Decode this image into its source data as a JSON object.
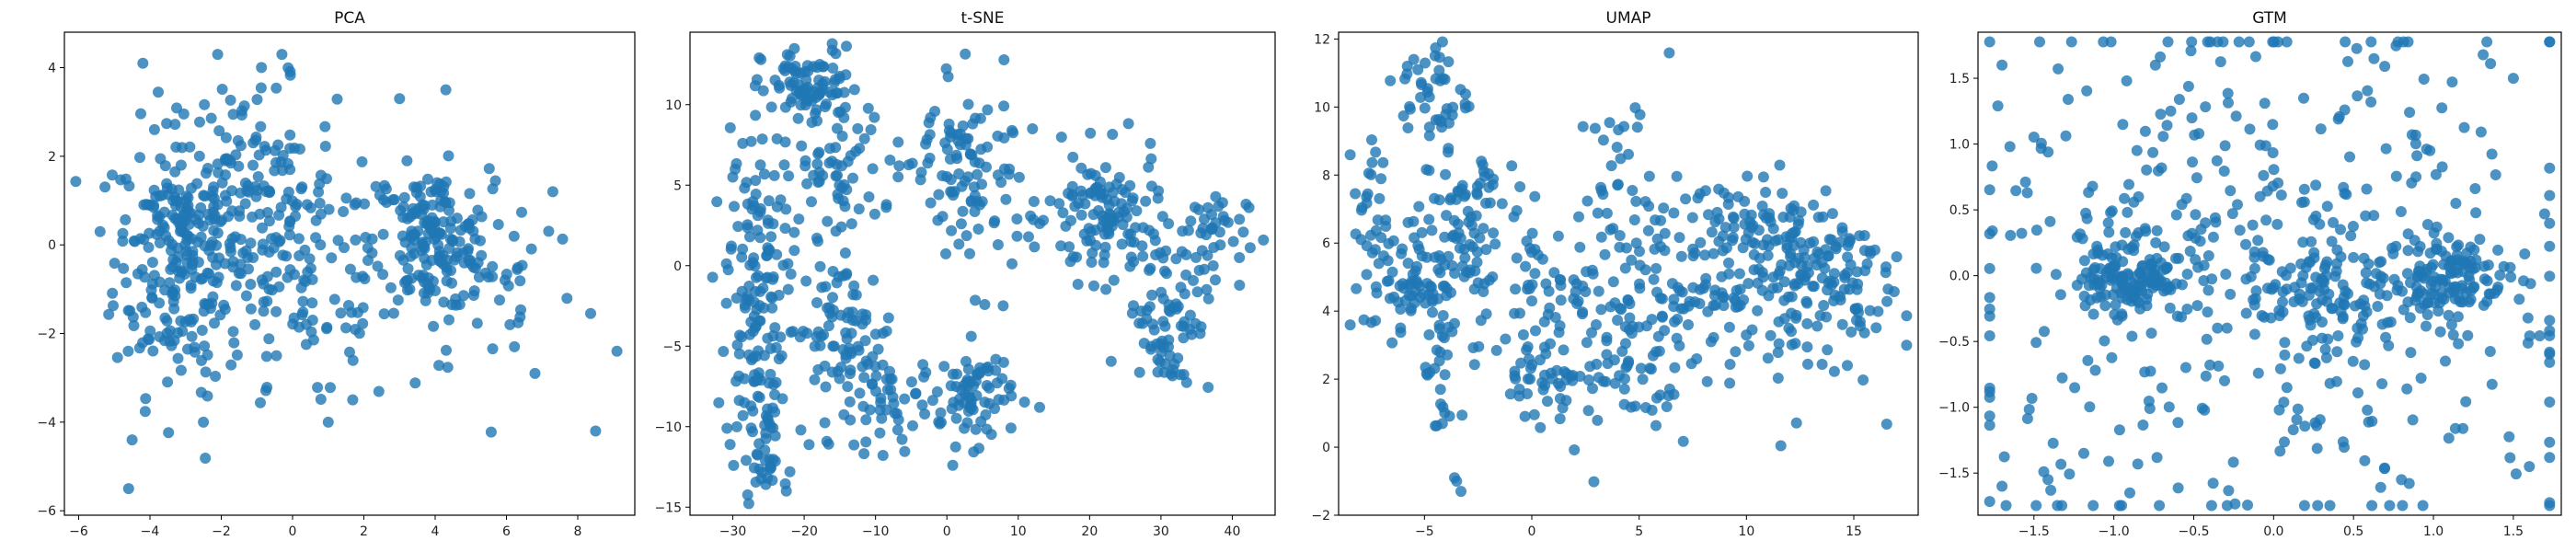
{
  "chart_data": [
    {
      "type": "scatter",
      "title": "PCA",
      "xlim": [
        -6.4,
        9.6
      ],
      "ylim": [
        -6.1,
        4.8
      ],
      "xticks": [
        -6,
        -4,
        -2,
        0,
        2,
        4,
        6,
        8
      ],
      "yticks": [
        -6,
        -4,
        -2,
        0,
        2,
        4
      ],
      "xtick_labels": [
        "−6",
        "−4",
        "−2",
        "0",
        "2",
        "4",
        "6",
        "8"
      ],
      "ytick_labels": [
        "−6",
        "−4",
        "−2",
        "0",
        "2",
        "4"
      ],
      "color": "#1f77b4",
      "clusters": [
        {
          "cx": -3.2,
          "cy": -0.3,
          "sx": 0.9,
          "sy": 1.5,
          "n": 230
        },
        {
          "cx": -1.2,
          "cy": 1.2,
          "sx": 1.2,
          "sy": 1.2,
          "n": 130
        },
        {
          "cx": 0.5,
          "cy": -1.0,
          "sx": 1.3,
          "sy": 1.5,
          "n": 110
        },
        {
          "cx": 3.9,
          "cy": 0.1,
          "sx": 0.8,
          "sy": 0.8,
          "n": 170
        },
        {
          "cx": 5.8,
          "cy": -0.8,
          "sx": 1.2,
          "sy": 1.2,
          "n": 40
        }
      ],
      "points": [
        [
          -4.6,
          -5.5
        ],
        [
          -4.5,
          -4.4
        ],
        [
          8.5,
          -4.2
        ],
        [
          9.1,
          -2.4
        ],
        [
          -0.3,
          4.3
        ],
        [
          -2.1,
          4.3
        ],
        [
          7.3,
          1.2
        ],
        [
          -5.4,
          0.3
        ],
        [
          6.8,
          -2.9
        ],
        [
          -4.2,
          4.1
        ],
        [
          3.0,
          3.3
        ],
        [
          4.3,
          3.5
        ],
        [
          -2.5,
          -4.0
        ],
        [
          1.0,
          -4.0
        ]
      ]
    },
    {
      "type": "scatter",
      "title": "t-SNE",
      "xlim": [
        -36,
        46
      ],
      "ylim": [
        -15.5,
        14.5
      ],
      "xticks": [
        -30,
        -20,
        -10,
        0,
        10,
        20,
        30,
        40
      ],
      "yticks": [
        -15,
        -10,
        -5,
        0,
        5,
        10
      ],
      "xtick_labels": [
        "−30",
        "−20",
        "−10",
        "0",
        "10",
        "20",
        "30",
        "40"
      ],
      "ytick_labels": [
        "−15",
        "−10",
        "−5",
        "0",
        "5",
        "10"
      ],
      "color": "#1f77b4",
      "clusters": [
        {
          "cx": -27,
          "cy": -2,
          "sx": 2.0,
          "sy": 5.5,
          "n": 150
        },
        {
          "cx": -19,
          "cy": 11,
          "sx": 3.5,
          "sy": 1.3,
          "n": 90
        },
        {
          "cx": -16,
          "cy": 5.5,
          "sx": 3.5,
          "sy": 1.8,
          "n": 60
        },
        {
          "cx": -15,
          "cy": -4,
          "sx": 4.0,
          "sy": 2.2,
          "n": 80
        },
        {
          "cx": -8,
          "cy": -8.5,
          "sx": 4.0,
          "sy": 1.5,
          "n": 60
        },
        {
          "cx": 4,
          "cy": -8,
          "sx": 2.5,
          "sy": 1.5,
          "n": 70
        },
        {
          "cx": 4,
          "cy": 5,
          "sx": 3.5,
          "sy": 3.0,
          "n": 80
        },
        {
          "cx": 22,
          "cy": 3,
          "sx": 4.0,
          "sy": 2.0,
          "n": 120
        },
        {
          "cx": 31,
          "cy": -3,
          "sx": 3.0,
          "sy": 2.5,
          "n": 80
        },
        {
          "cx": 36,
          "cy": 2,
          "sx": 3.0,
          "sy": 1.5,
          "n": 40
        },
        {
          "cx": -26,
          "cy": -12,
          "sx": 1.2,
          "sy": 1.5,
          "n": 25
        },
        {
          "cx": -2,
          "cy": 7,
          "sx": 2.5,
          "sy": 1.5,
          "n": 25
        }
      ],
      "points": [
        [
          -22.5,
          -14.0
        ],
        [
          -22.0,
          -12.8
        ],
        [
          41,
          0.5
        ],
        [
          -30,
          5.5
        ],
        [
          12,
          8.5
        ],
        [
          13,
          -8.8
        ]
      ]
    },
    {
      "type": "scatter",
      "title": "UMAP",
      "xlim": [
        -9,
        18
      ],
      "ylim": [
        -2,
        12.2
      ],
      "xticks": [
        -5,
        0,
        5,
        10,
        15
      ],
      "yticks": [
        -2,
        0,
        2,
        4,
        6,
        8,
        10,
        12
      ],
      "xtick_labels": [
        "−5",
        "0",
        "5",
        "10",
        "15"
      ],
      "ytick_labels": [
        "−2",
        "0",
        "2",
        "4",
        "6",
        "8",
        "10",
        "12"
      ],
      "color": "#1f77b4",
      "clusters": [
        {
          "cx": -7.5,
          "cy": 7.0,
          "sx": 0.4,
          "sy": 1.0,
          "n": 25
        },
        {
          "cx": -6.0,
          "cy": 4.8,
          "sx": 0.9,
          "sy": 0.8,
          "n": 60
        },
        {
          "cx": -4.5,
          "cy": 10.3,
          "sx": 0.8,
          "sy": 0.9,
          "n": 45
        },
        {
          "cx": -3.5,
          "cy": 6.0,
          "sx": 1.0,
          "sy": 1.2,
          "n": 60
        },
        {
          "cx": -2.0,
          "cy": 7.5,
          "sx": 1.0,
          "sy": 0.6,
          "n": 30
        },
        {
          "cx": 1.0,
          "cy": 4.5,
          "sx": 2.0,
          "sy": 1.0,
          "n": 60
        },
        {
          "cx": 1.5,
          "cy": 2.2,
          "sx": 1.8,
          "sy": 0.6,
          "n": 60
        },
        {
          "cx": 5.0,
          "cy": 3.5,
          "sx": 2.0,
          "sy": 1.5,
          "n": 90
        },
        {
          "cx": 4.5,
          "cy": 7.5,
          "sx": 1.2,
          "sy": 1.5,
          "n": 40
        },
        {
          "cx": 9.0,
          "cy": 5.5,
          "sx": 2.0,
          "sy": 1.2,
          "n": 90
        },
        {
          "cx": 12.0,
          "cy": 4.5,
          "sx": 2.0,
          "sy": 1.5,
          "n": 80
        },
        {
          "cx": 14.5,
          "cy": 5.0,
          "sx": 1.2,
          "sy": 1.2,
          "n": 60
        },
        {
          "cx": 11.0,
          "cy": 6.5,
          "sx": 1.5,
          "sy": 0.5,
          "n": 40
        },
        {
          "cx": -4.2,
          "cy": 2.0,
          "sx": 0.4,
          "sy": 1.3,
          "n": 30
        }
      ],
      "points": [
        [
          -3.5,
          -1.0
        ],
        [
          -3.3,
          -1.3
        ],
        [
          -3.6,
          -0.9
        ],
        [
          -5.5,
          11.4
        ],
        [
          -5.8,
          11.2
        ],
        [
          16.5,
          5.3
        ]
      ]
    },
    {
      "type": "scatter",
      "title": "GTM",
      "xlim": [
        -1.85,
        1.8
      ],
      "ylim": [
        -1.82,
        1.85
      ],
      "xticks": [
        -1.5,
        -1.0,
        -0.5,
        0.0,
        0.5,
        1.0,
        1.5
      ],
      "yticks": [
        -1.5,
        -1.0,
        -0.5,
        0.0,
        0.5,
        1.0,
        1.5
      ],
      "xtick_labels": [
        "−1.5",
        "−1.0",
        "−0.5",
        "0.0",
        "0.5",
        "1.0",
        "1.5"
      ],
      "ytick_labels": [
        "−1.5",
        "−1.0",
        "−0.5",
        "0.0",
        "0.5",
        "1.0",
        "1.5"
      ],
      "color": "#1f77b4",
      "clusters": [
        {
          "cx": -0.9,
          "cy": 0.0,
          "sx": 0.15,
          "sy": 0.15,
          "n": 130
        },
        {
          "cx": 1.1,
          "cy": 0.0,
          "sx": 0.18,
          "sy": 0.15,
          "n": 110
        },
        {
          "cx": 0.3,
          "cy": -0.1,
          "sx": 0.25,
          "sy": 0.2,
          "n": 80
        },
        {
          "cx": 0.0,
          "cy": 0.0,
          "sx": 1.0,
          "sy": 1.0,
          "n": 450
        }
      ],
      "points": [
        [
          -1.7,
          1.6
        ],
        [
          1.5,
          1.5
        ],
        [
          -1.7,
          -1.6
        ],
        [
          1.6,
          -1.45
        ],
        [
          -0.9,
          -1.65
        ],
        [
          0.8,
          -1.55
        ]
      ]
    }
  ]
}
